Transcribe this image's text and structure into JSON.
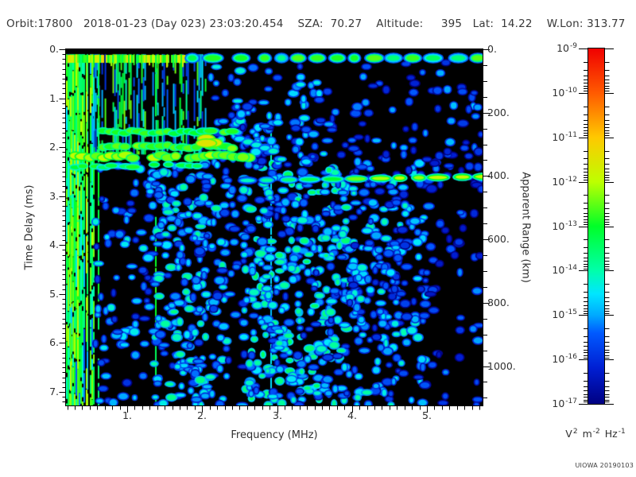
{
  "header": {
    "text": "Orbit:17800   2018-01-23 (Day 023) 23:03:20.454    SZA:  70.27    Altitude:     395   Lat:  14.22    W.Lon: 313.77"
  },
  "credit": "UIOWA 20190103",
  "chart_data": {
    "type": "heatmap",
    "subtype": "radar-sounder-ionogram-spectrogram",
    "title": "Orbit:17800  2018-01-23 (Day 023) 23:03:20.454  SZA: 70.27  Altitude: 395  Lat: 14.22  W.Lon: 313.77",
    "x_axis": {
      "label": "Frequency (MHz)",
      "range": [
        0.183,
        5.74
      ],
      "ticks": [
        1,
        2,
        3,
        4,
        5
      ],
      "tick_labels": [
        "1.",
        "2.",
        "3.",
        "4.",
        "5."
      ],
      "minor_tick_step": 0.1
    },
    "y_axis": {
      "label": "Time Delay (ms)",
      "range": [
        0,
        7.28
      ],
      "ticks": [
        0,
        1,
        2,
        3,
        4,
        5,
        6,
        7
      ],
      "tick_labels": [
        "0.",
        "1.",
        "2.",
        "3.",
        "4.",
        "5.",
        "6.",
        "7."
      ],
      "minor_tick_step": 0.1
    },
    "y2_axis": {
      "label": "Apparent Range (km)",
      "range": [
        0,
        1124
      ],
      "ticks": [
        0,
        200,
        400,
        600,
        800,
        1000
      ],
      "tick_labels": [
        "0.",
        "200.",
        "400.",
        "600.",
        "800.",
        "1000."
      ],
      "minor_tick_step": 50
    },
    "colorbar": {
      "scale": "log",
      "max": "1e-9",
      "min": "1e-17",
      "exponent_base": "10",
      "exponents": [
        "-9",
        "-10",
        "-11",
        "-12",
        "-13",
        "-14",
        "-15",
        "-16",
        "-17"
      ],
      "unit_parts": [
        {
          "base": "V",
          "sup": "2"
        },
        {
          "base": "m",
          "sup": "-2"
        },
        {
          "base": "Hz",
          "sup": "-1"
        }
      ],
      "stops": [
        [
          0.0,
          [
            240,
            0,
            0
          ]
        ],
        [
          0.125,
          [
            255,
            90,
            0
          ]
        ],
        [
          0.25,
          [
            255,
            200,
            0
          ]
        ],
        [
          0.375,
          [
            190,
            255,
            0
          ]
        ],
        [
          0.5,
          [
            0,
            255,
            40
          ]
        ],
        [
          0.625,
          [
            0,
            255,
            170
          ]
        ],
        [
          0.69,
          [
            0,
            230,
            255
          ]
        ],
        [
          0.75,
          [
            0,
            170,
            255
          ]
        ],
        [
          0.8,
          [
            0,
            90,
            255
          ]
        ],
        [
          0.9,
          [
            0,
            30,
            210
          ]
        ],
        [
          1.0,
          [
            0,
            0,
            130
          ]
        ]
      ]
    },
    "features": {
      "background": "#000000",
      "top_black_band_ms": [
        0,
        0.1
      ],
      "first_arrival": {
        "t_center": 0.21,
        "dense_f": [
          0.183,
          1.8
        ],
        "dash_f": [
          1.8,
          5.74
        ],
        "v_dense": [
          0.45,
          0.72
        ],
        "v_dash_core": [
          0.4,
          0.6
        ]
      },
      "stripe_bands": [
        {
          "f": [
            0.183,
            0.55
          ],
          "t": [
            0.1,
            7.28
          ],
          "fill": 0.92,
          "palette": [
            [
              0.35,
              0.5,
              0.55
            ],
            [
              0.5,
              0.63,
              0.33
            ],
            [
              0.18,
              0.35,
              0.12
            ]
          ]
        },
        {
          "f": [
            0.55,
            2.05
          ],
          "t": [
            0.1,
            2.15
          ],
          "fill": 0.55,
          "palette": [
            [
              0.12,
              0.3,
              0.45
            ],
            [
              0.3,
              0.5,
              0.35
            ],
            [
              0.5,
              0.6,
              0.2
            ]
          ]
        }
      ],
      "plasma_lines": [
        {
          "f": 0.236,
          "v": 0.58,
          "t0": 0.12
        },
        {
          "f": 0.33,
          "v": 0.6,
          "t0": 0.12
        },
        {
          "f": 0.45,
          "v": 0.6,
          "t0": 0.12
        },
        {
          "f": 0.61,
          "v": 0.48,
          "t0": 0.12
        },
        {
          "f": 1.37,
          "v": 0.5,
          "t0": 0.12
        },
        {
          "f": 2.91,
          "v": 0.3,
          "t0": 1.5
        }
      ],
      "noise_regions": [
        {
          "f": [
            0.57,
            1.35
          ],
          "t": [
            2.3,
            7.28
          ],
          "n": 90,
          "v": [
            0.12,
            0.35
          ],
          "bias": "none"
        },
        {
          "f": [
            1.35,
            2.33
          ],
          "t": [
            2.3,
            7.28
          ],
          "n": 260,
          "v": [
            0.15,
            0.42
          ],
          "bias": "none"
        },
        {
          "f": [
            2.35,
            2.55
          ],
          "t": [
            0.4,
            7.28
          ],
          "n": 25,
          "v": [
            0.12,
            0.3
          ],
          "bias": "none"
        },
        {
          "f": [
            2.55,
            3.95
          ],
          "t": [
            2.3,
            7.28
          ],
          "n": 420,
          "v": [
            0.15,
            0.45
          ],
          "bias": "none"
        },
        {
          "f": [
            3.95,
            5.0
          ],
          "t": [
            2.3,
            7.28
          ],
          "n": 260,
          "v": [
            0.12,
            0.38
          ],
          "bias": "none"
        },
        {
          "f": [
            5.0,
            5.74
          ],
          "t": [
            2.3,
            7.28
          ],
          "n": 60,
          "v": [
            0.08,
            0.25
          ],
          "bias": "top"
        },
        {
          "f": [
            2.1,
            3.9
          ],
          "t": [
            0.25,
            2.3
          ],
          "n": 120,
          "v": [
            0.12,
            0.35
          ],
          "bias": "bottom"
        },
        {
          "f": [
            3.9,
            5.74
          ],
          "t": [
            0.25,
            2.3
          ],
          "n": 65,
          "v": [
            0.1,
            0.28
          ],
          "bias": "bottom"
        }
      ],
      "echo_traces": [
        {
          "t": 1.69,
          "f": [
            0.68,
            2.46
          ],
          "v": 0.52,
          "th": 6,
          "skip": 0.15
        },
        {
          "t": 1.99,
          "f": [
            0.68,
            2.49
          ],
          "v": 0.55,
          "th": 7,
          "skip": 0.15
        },
        {
          "t": 2.19,
          "f": [
            0.31,
            2.54
          ],
          "v": 0.6,
          "th": 8,
          "skip": 0.1
        },
        {
          "t": 2.38,
          "f": [
            0.31,
            1.95
          ],
          "v": 0.48,
          "th": 5,
          "skip": 0.35
        }
      ],
      "bright_blob": {
        "f": [
          1.9,
          2.2
        ],
        "t": [
          1.8,
          1.95
        ],
        "v": 0.68
      },
      "detached_blob": {
        "f": [
          2.49,
          2.64
        ],
        "t": [
          2.16,
          2.29
        ],
        "v": 0.58
      },
      "trace_tail": {
        "f": [
          2.5,
          2.95
        ],
        "t": [
          1.83,
          2.08
        ],
        "v": 0.33
      },
      "surface_trace": {
        "t_start": 2.68,
        "t_end": 2.6,
        "f": [
          2.5,
          5.74
        ],
        "bright_from_mhz": 3.9,
        "v": [
          0.36,
          0.6
        ],
        "th": 6,
        "faint_f": [
          2.3,
          2.5
        ]
      }
    }
  }
}
